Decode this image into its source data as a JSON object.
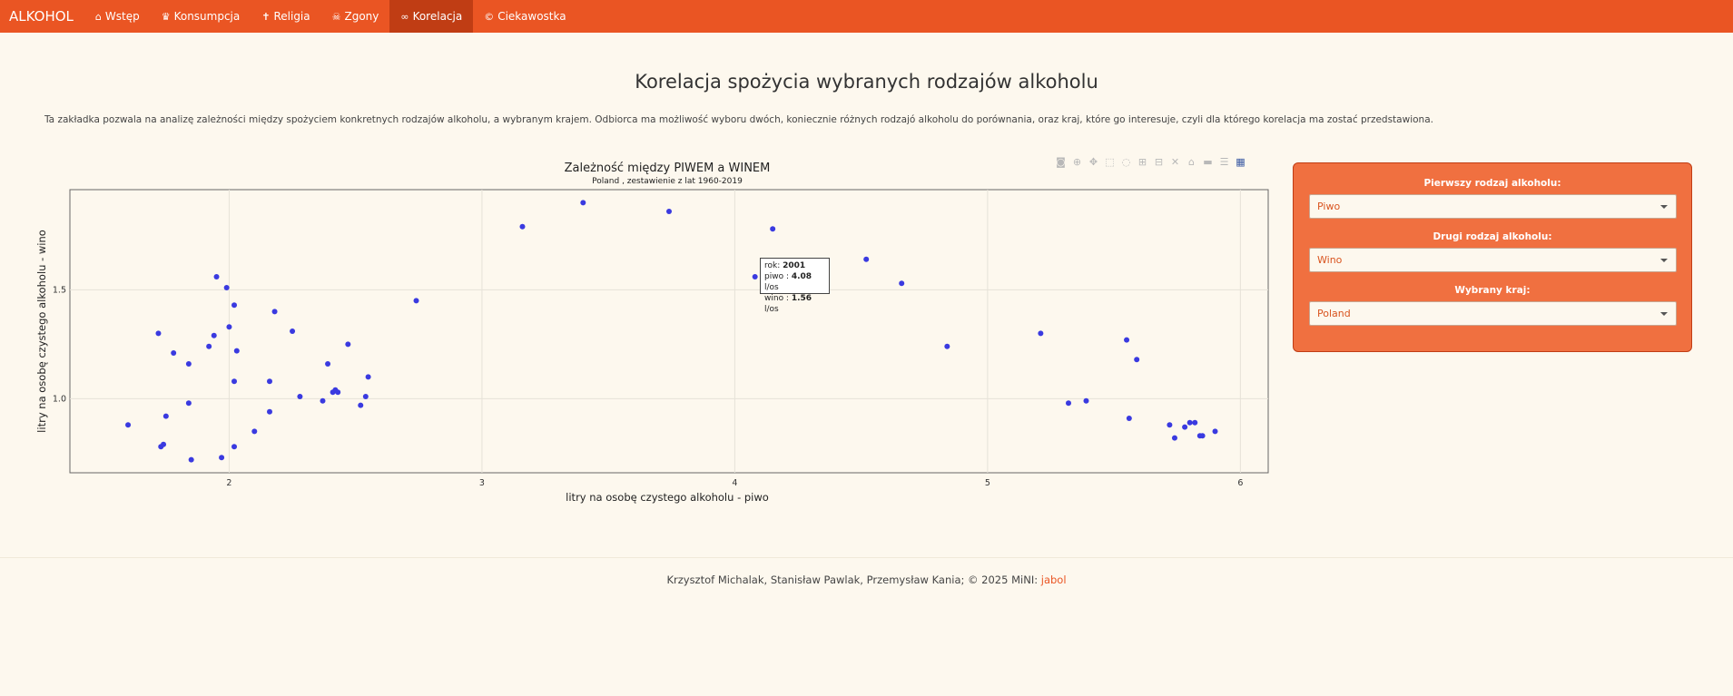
{
  "nav": {
    "brand": "ALKOHOL",
    "items": [
      {
        "label": "Wstęp",
        "icon": "home-icon"
      },
      {
        "label": "Konsumpcja",
        "icon": "crown-icon"
      },
      {
        "label": "Religia",
        "icon": "cross-icon"
      },
      {
        "label": "Zgony",
        "icon": "skull-icon"
      },
      {
        "label": "Korelacja",
        "icon": "link-icon",
        "active": true
      },
      {
        "label": "Ciekawostka",
        "icon": "copyright-icon"
      }
    ],
    "bg_color": "#ea5523",
    "active_color": "#c03d14"
  },
  "page": {
    "title": "Korelacja spożycia wybranych rodzajów alkoholu",
    "intro": "Ta zakładka pozwala na analizę zależności między spożyciem konkretnych rodzajów alkoholu, a wybranym krajem. Odbiorca ma możliwość wyboru dwóch, koniecznie różnych rodzajó alkoholu do porównania, oraz kraj, które go interesuje, czyli dla którego korelacja ma zostać przedstawiona."
  },
  "tooltip": {
    "rok_label": "rok:",
    "rok_value": "2001",
    "piwo_label": "piwo :",
    "piwo_value": "4.08",
    "piwo_unit": "l/os",
    "wino_label": "wino :",
    "wino_value": "1.56",
    "wino_unit": "l/os"
  },
  "controls": {
    "first": {
      "label": "Pierwszy rodzaj alkoholu:",
      "value": "Piwo"
    },
    "second": {
      "label": "Drugi rodzaj alkoholu:",
      "value": "Wino"
    },
    "country": {
      "label": "Wybrany kraj:",
      "value": "Poland"
    }
  },
  "footer": {
    "text": "Krzysztof Michalak, Stanisław Pawlak, Przemysław Kania; © 2025 MiNI: ",
    "link": "jabol"
  },
  "chart_data": {
    "type": "scatter",
    "title": "Zależność między PIWEM a WINEM",
    "subtitle": "Poland , zestawienie z lat 1960-2019",
    "xlabel": "litry na osobę czystego alkoholu - piwo",
    "ylabel": "litry na osobę czystego alkoholu - wino",
    "xlim": [
      1.37,
      6.11
    ],
    "ylim": [
      0.66,
      1.96
    ],
    "xticks": [
      "2",
      "3",
      "4",
      "5",
      "6"
    ],
    "xtick_values": [
      2,
      3,
      4,
      5,
      6
    ],
    "yticks": [
      "1.0",
      "1.5"
    ],
    "ytick_values": [
      1.0,
      1.5
    ],
    "grid": true,
    "marker_color": "#3a3ae0",
    "points": [
      [
        1.6,
        0.88
      ],
      [
        1.72,
        1.3
      ],
      [
        1.73,
        0.78
      ],
      [
        1.74,
        0.79
      ],
      [
        1.75,
        0.92
      ],
      [
        1.78,
        1.21
      ],
      [
        1.84,
        1.16
      ],
      [
        1.84,
        0.98
      ],
      [
        1.85,
        0.72
      ],
      [
        1.92,
        1.24
      ],
      [
        1.94,
        1.29
      ],
      [
        1.95,
        1.56
      ],
      [
        1.97,
        0.73
      ],
      [
        1.99,
        1.51
      ],
      [
        2.0,
        1.33
      ],
      [
        2.02,
        1.43
      ],
      [
        2.02,
        1.08
      ],
      [
        2.02,
        0.78
      ],
      [
        2.03,
        1.22
      ],
      [
        2.1,
        0.85
      ],
      [
        2.16,
        1.08
      ],
      [
        2.16,
        0.94
      ],
      [
        2.18,
        1.4
      ],
      [
        2.25,
        1.31
      ],
      [
        2.28,
        1.01
      ],
      [
        2.37,
        0.99
      ],
      [
        2.39,
        1.16
      ],
      [
        2.41,
        1.03
      ],
      [
        2.42,
        1.04
      ],
      [
        2.43,
        1.03
      ],
      [
        2.47,
        1.25
      ],
      [
        2.52,
        0.97
      ],
      [
        2.54,
        1.01
      ],
      [
        2.55,
        1.1
      ],
      [
        2.74,
        1.45
      ],
      [
        3.16,
        1.79
      ],
      [
        3.4,
        1.9
      ],
      [
        3.74,
        1.86
      ],
      [
        4.08,
        1.56
      ],
      [
        4.15,
        1.78
      ],
      [
        4.52,
        1.64
      ],
      [
        4.66,
        1.53
      ],
      [
        4.84,
        1.24
      ],
      [
        5.21,
        1.3
      ],
      [
        5.32,
        0.98
      ],
      [
        5.39,
        0.99
      ],
      [
        5.55,
        1.27
      ],
      [
        5.56,
        0.91
      ],
      [
        5.59,
        1.18
      ],
      [
        5.72,
        0.88
      ],
      [
        5.74,
        0.82
      ],
      [
        5.78,
        0.87
      ],
      [
        5.8,
        0.89
      ],
      [
        5.82,
        0.89
      ],
      [
        5.84,
        0.83
      ],
      [
        5.85,
        0.83
      ],
      [
        5.9,
        0.85
      ]
    ]
  }
}
